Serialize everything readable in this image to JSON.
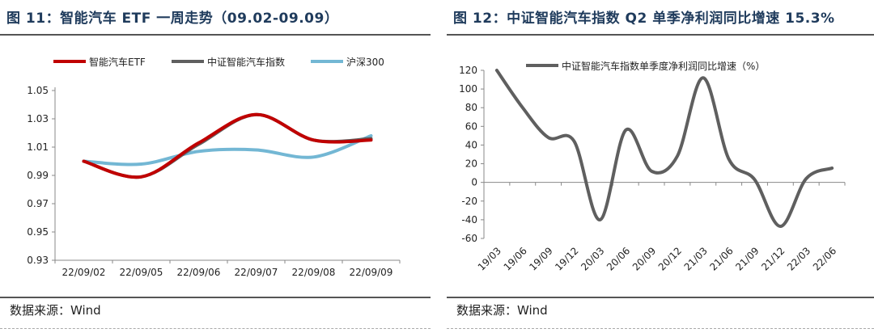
{
  "left": {
    "title": "图 11：智能汽车 ETF 一周走势（09.02-09.09）",
    "source": "数据来源：Wind",
    "chart_data": {
      "type": "line",
      "categories": [
        "22/09/02",
        "22/09/05",
        "22/09/06",
        "22/09/07",
        "22/09/08",
        "22/09/09"
      ],
      "ylim": [
        0.93,
        1.05
      ],
      "yticks": [
        "0.93",
        "0.95",
        "0.97",
        "0.99",
        "1.01",
        "1.03",
        "1.05"
      ],
      "legend_position": "top",
      "series": [
        {
          "name": "智能汽车ETF",
          "color": "#c00000",
          "values": [
            1.0,
            0.989,
            1.013,
            1.033,
            1.015,
            1.015
          ]
        },
        {
          "name": "中证智能汽车指数",
          "color": "#5f5f5f",
          "values": [
            1.0,
            0.989,
            1.012,
            1.033,
            1.015,
            1.016
          ]
        },
        {
          "name": "沪深300",
          "color": "#73b7d4",
          "values": [
            1.0,
            0.998,
            1.007,
            1.008,
            1.003,
            1.018
          ]
        }
      ]
    }
  },
  "right": {
    "title": "图 12：中证智能汽车指数 Q2 单季净利润同比增速 15.3%",
    "source": "数据来源：Wind",
    "chart_data": {
      "type": "line",
      "categories": [
        "19/03",
        "19/06",
        "19/09",
        "19/12",
        "20/03",
        "20/06",
        "20/09",
        "20/12",
        "21/03",
        "21/06",
        "21/09",
        "21/12",
        "22/03",
        "22/06"
      ],
      "ylim": [
        -60,
        120
      ],
      "yticks": [
        "-60",
        "-40",
        "-20",
        "0",
        "20",
        "40",
        "60",
        "80",
        "100",
        "120"
      ],
      "legend_position": "top",
      "series": [
        {
          "name": "中证智能汽车指数单季度净利润同比增速（%）",
          "color": "#5f5f5f",
          "values": [
            120,
            80,
            48,
            44,
            -40,
            56,
            12,
            28,
            112,
            25,
            3,
            -47,
            4,
            15.3
          ]
        }
      ]
    }
  }
}
